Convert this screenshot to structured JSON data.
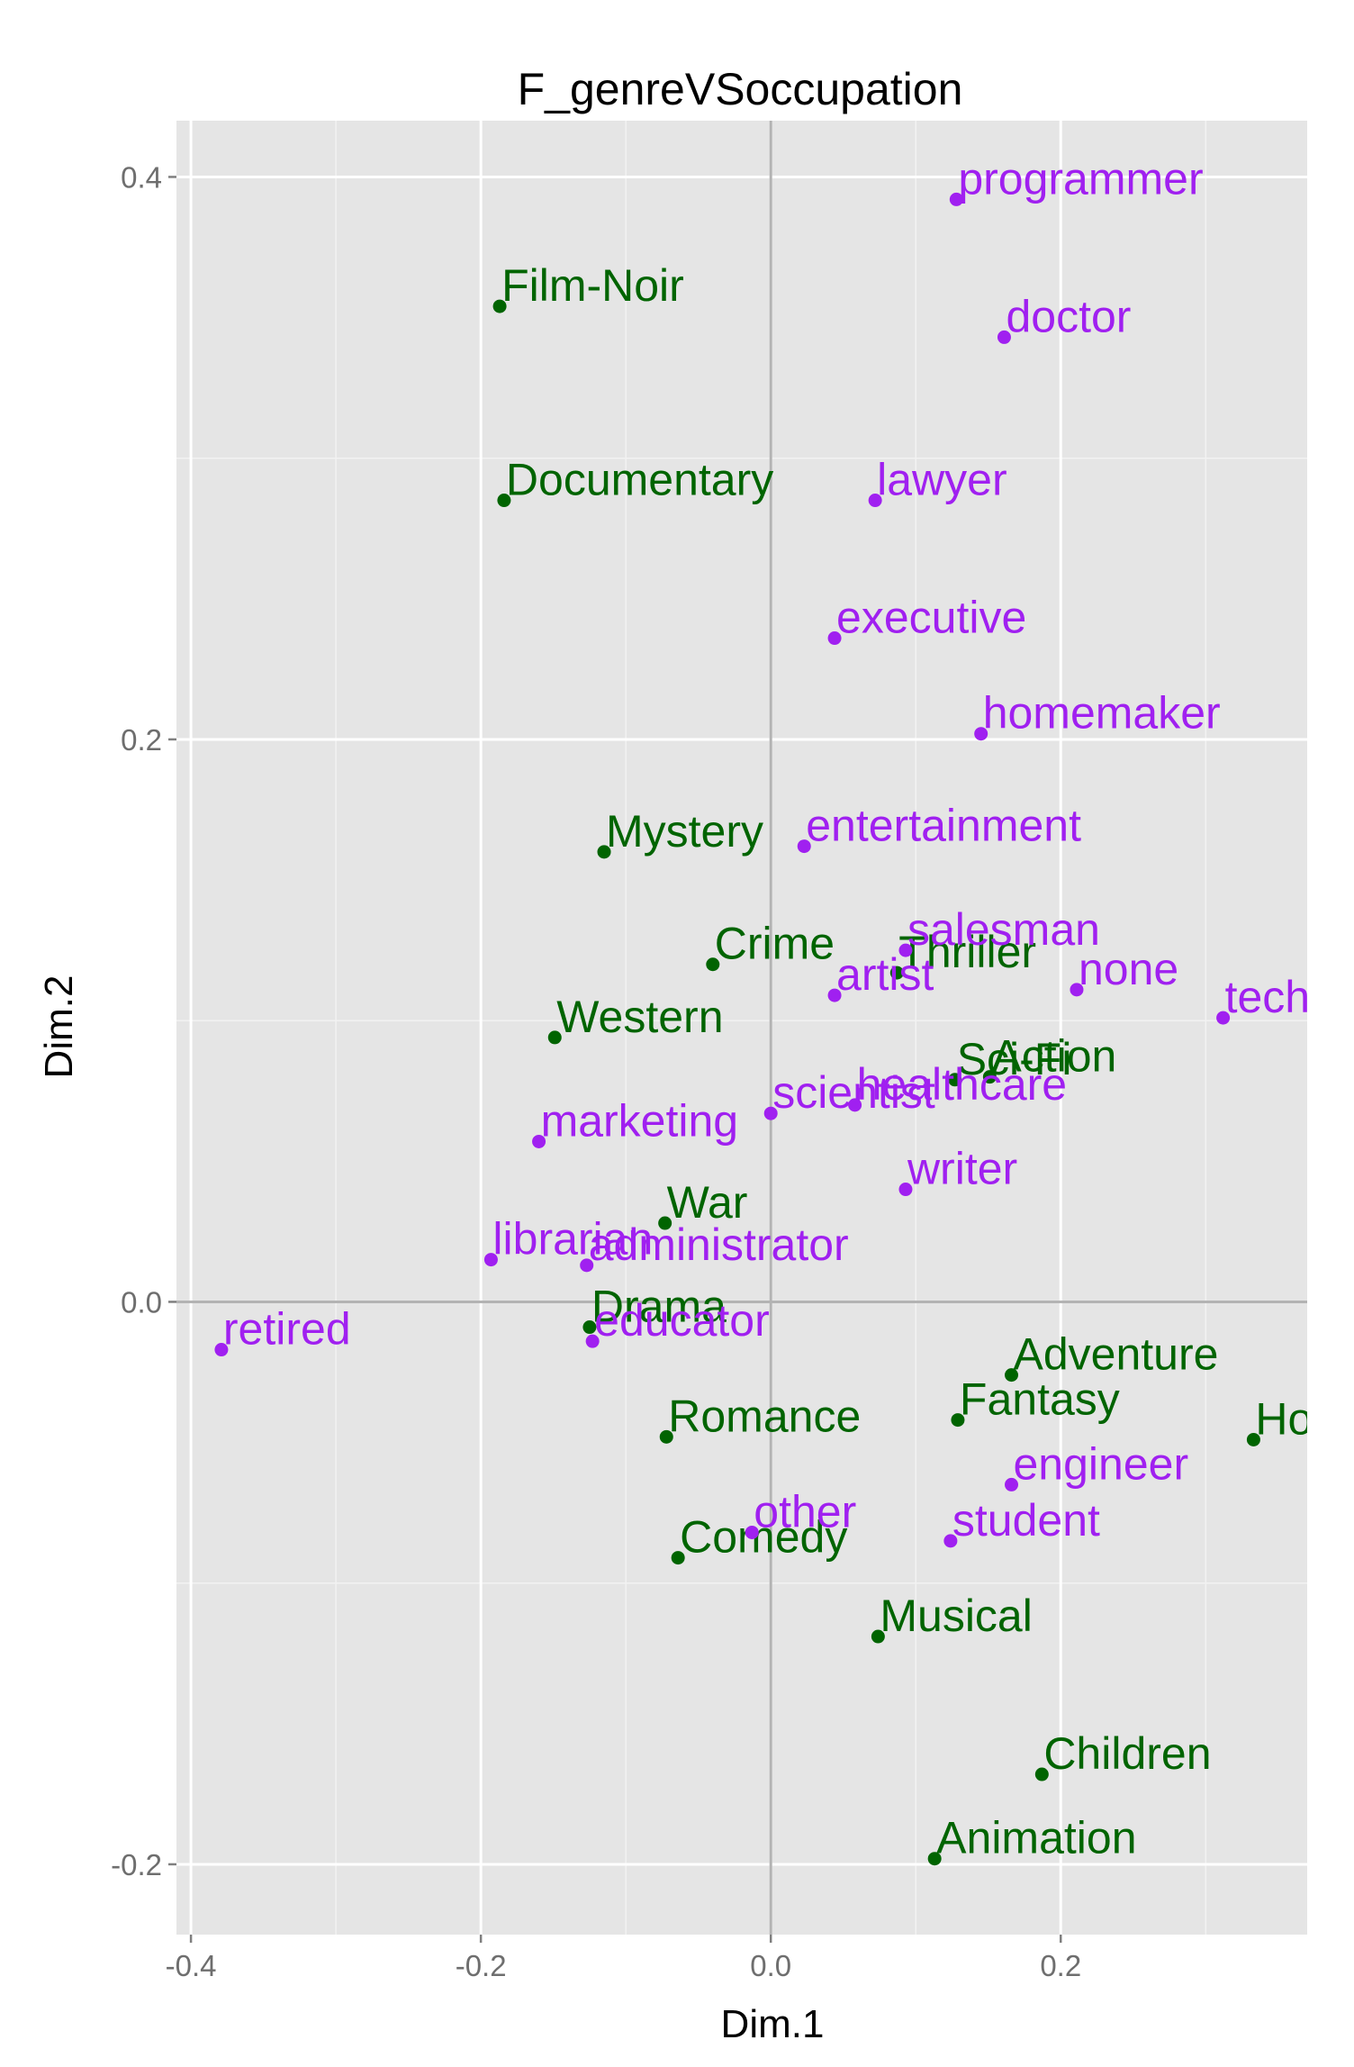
{
  "chart_data": {
    "type": "scatter",
    "title": "F_genreVSoccupation",
    "xlabel": "Dim.1",
    "ylabel": "Dim.2",
    "xlim": [
      -0.41,
      0.37
    ],
    "ylim": [
      -0.225,
      0.42
    ],
    "x_ticks": [
      -0.4,
      -0.2,
      0.0,
      0.2
    ],
    "y_ticks": [
      -0.2,
      0.0,
      0.2,
      0.4
    ],
    "x_tick_labels": [
      "-0.4",
      "-0.2",
      "0.0",
      "0.2"
    ],
    "y_tick_labels": [
      "-0.2",
      "0.0",
      "0.2",
      "0.4"
    ],
    "grid": true,
    "reference_lines": {
      "x": 0,
      "y": 0
    },
    "colors": {
      "panel_background": "#e5e5e5",
      "grid_major": "#ffffff",
      "grid_minor": "#f2f2f2",
      "reference_line": "#b3b3b3",
      "genre": "#006400",
      "occupation": "#a020f0"
    },
    "series": [
      {
        "color": "#006400",
        "points": [
          {
            "label": "Film-Noir",
            "x": -0.187,
            "y": 0.354
          },
          {
            "label": "Documentary",
            "x": -0.184,
            "y": 0.285
          },
          {
            "label": "Mystery",
            "x": -0.115,
            "y": 0.16
          },
          {
            "label": "Crime",
            "x": -0.04,
            "y": 0.12
          },
          {
            "label": "Thriller",
            "x": 0.087,
            "y": 0.117
          },
          {
            "label": "Western",
            "x": -0.149,
            "y": 0.094
          },
          {
            "label": "Sci-Fi",
            "x": 0.127,
            "y": 0.079
          },
          {
            "label": "Action",
            "x": 0.151,
            "y": 0.08
          },
          {
            "label": "War",
            "x": -0.073,
            "y": 0.028
          },
          {
            "label": "Drama",
            "x": -0.125,
            "y": -0.009
          },
          {
            "label": "Adventure",
            "x": 0.166,
            "y": -0.026
          },
          {
            "label": "Fantasy",
            "x": 0.129,
            "y": -0.042
          },
          {
            "label": "Horror",
            "x": 0.333,
            "y": -0.049
          },
          {
            "label": "Romance",
            "x": -0.072,
            "y": -0.048
          },
          {
            "label": "Comedy",
            "x": -0.064,
            "y": -0.091
          },
          {
            "label": "Musical",
            "x": 0.074,
            "y": -0.119
          },
          {
            "label": "Children",
            "x": 0.187,
            "y": -0.168
          },
          {
            "label": "Animation",
            "x": 0.113,
            "y": -0.198
          }
        ]
      },
      {
        "color": "#a020f0",
        "points": [
          {
            "label": "programmer",
            "x": 0.128,
            "y": 0.392
          },
          {
            "label": "doctor",
            "x": 0.161,
            "y": 0.343
          },
          {
            "label": "lawyer",
            "x": 0.072,
            "y": 0.285
          },
          {
            "label": "executive",
            "x": 0.044,
            "y": 0.236
          },
          {
            "label": "homemaker",
            "x": 0.145,
            "y": 0.202
          },
          {
            "label": "entertainment",
            "x": 0.023,
            "y": 0.162
          },
          {
            "label": "salesman",
            "x": 0.093,
            "y": 0.125
          },
          {
            "label": "artist",
            "x": 0.044,
            "y": 0.109
          },
          {
            "label": "none",
            "x": 0.211,
            "y": 0.111
          },
          {
            "label": "technician",
            "x": 0.312,
            "y": 0.101
          },
          {
            "label": "healthcare",
            "x": 0.058,
            "y": 0.07
          },
          {
            "label": "scientist",
            "x": 0.0,
            "y": 0.067
          },
          {
            "label": "marketing",
            "x": -0.16,
            "y": 0.057
          },
          {
            "label": "writer",
            "x": 0.093,
            "y": 0.04
          },
          {
            "label": "librarian",
            "x": -0.193,
            "y": 0.015
          },
          {
            "label": "administrator",
            "x": -0.127,
            "y": 0.013
          },
          {
            "label": "retired",
            "x": -0.379,
            "y": -0.017
          },
          {
            "label": "educator",
            "x": -0.123,
            "y": -0.014
          },
          {
            "label": "engineer",
            "x": 0.166,
            "y": -0.065
          },
          {
            "label": "other",
            "x": -0.013,
            "y": -0.082
          },
          {
            "label": "student",
            "x": 0.124,
            "y": -0.085
          }
        ]
      }
    ]
  }
}
